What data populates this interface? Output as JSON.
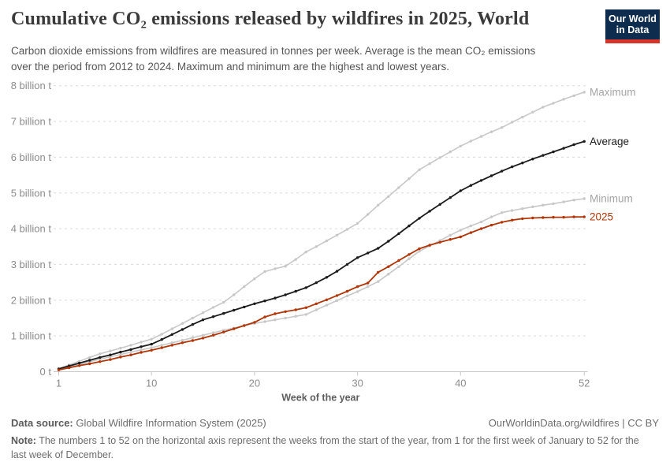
{
  "header": {
    "title": "Cumulative CO₂ emissions released by wildfires in 2025, World",
    "subtitle": "Carbon dioxide emissions from wildfires are measured in tonnes per week. Average is the mean CO₂ emissions over the period from 2012 to 2024. Maximum and minimum are the highest and lowest years.",
    "logo": {
      "line1": "Our World",
      "line2": "in Data"
    },
    "logo_colors": {
      "background": "#0e2d4e",
      "stripe": "#d7352a"
    }
  },
  "chart_data": {
    "type": "line",
    "title": "Cumulative CO₂ emissions released by wildfires in 2025, World",
    "xlabel": "Week of the year",
    "ylabel": "",
    "ylim": [
      0,
      8
    ],
    "xlim": [
      1,
      52
    ],
    "grid": "dashed-horizontal",
    "legend_position": "right-of-line-ends",
    "x_ticks": [
      1,
      10,
      20,
      30,
      40,
      52
    ],
    "y_ticks": [
      {
        "v": 0,
        "label": "0 t"
      },
      {
        "v": 1,
        "label": "1 billion t"
      },
      {
        "v": 2,
        "label": "2 billion t"
      },
      {
        "v": 3,
        "label": "3 billion t"
      },
      {
        "v": 4,
        "label": "4 billion t"
      },
      {
        "v": 5,
        "label": "5 billion t"
      },
      {
        "v": 6,
        "label": "6 billion t"
      },
      {
        "v": 7,
        "label": "7 billion t"
      },
      {
        "v": 8,
        "label": "8 billion t"
      }
    ],
    "x": [
      1,
      2,
      3,
      4,
      5,
      6,
      7,
      8,
      9,
      10,
      11,
      12,
      13,
      14,
      15,
      16,
      17,
      18,
      19,
      20,
      21,
      22,
      23,
      24,
      25,
      26,
      27,
      28,
      29,
      30,
      31,
      32,
      33,
      34,
      35,
      36,
      37,
      38,
      39,
      40,
      41,
      42,
      43,
      44,
      45,
      46,
      47,
      48,
      49,
      50,
      51,
      52
    ],
    "unit": "billion tonnes",
    "series": [
      {
        "name": "Maximum",
        "color": "#c8c8c8",
        "label_color": "#a5a5a5",
        "width": 1.6,
        "values": [
          0.08,
          0.19,
          0.29,
          0.4,
          0.5,
          0.58,
          0.66,
          0.74,
          0.83,
          0.91,
          1.05,
          1.2,
          1.35,
          1.5,
          1.65,
          1.8,
          1.94,
          2.15,
          2.38,
          2.6,
          2.8,
          2.88,
          2.95,
          3.14,
          3.35,
          3.5,
          3.66,
          3.82,
          3.98,
          4.15,
          4.4,
          4.66,
          4.9,
          5.15,
          5.4,
          5.65,
          5.82,
          5.99,
          6.15,
          6.31,
          6.45,
          6.58,
          6.71,
          6.83,
          6.98,
          7.12,
          7.26,
          7.4,
          7.51,
          7.62,
          7.72,
          7.82
        ]
      },
      {
        "name": "Minimum",
        "color": "#c8c8c8",
        "label_color": "#a5a5a5",
        "width": 1.6,
        "values": [
          0.06,
          0.13,
          0.2,
          0.28,
          0.35,
          0.42,
          0.48,
          0.55,
          0.61,
          0.67,
          0.74,
          0.81,
          0.88,
          0.95,
          1.02,
          1.09,
          1.16,
          1.22,
          1.29,
          1.35,
          1.4,
          1.45,
          1.5,
          1.55,
          1.6,
          1.73,
          1.86,
          1.99,
          2.12,
          2.24,
          2.38,
          2.52,
          2.73,
          2.94,
          3.16,
          3.37,
          3.52,
          3.67,
          3.82,
          3.96,
          4.08,
          4.19,
          4.33,
          4.45,
          4.51,
          4.56,
          4.61,
          4.66,
          4.7,
          4.75,
          4.8,
          4.84
        ]
      },
      {
        "name": "Average",
        "color": "#1c1c1c",
        "label_color": "#1c1c1c",
        "width": 1.8,
        "values": [
          0.08,
          0.16,
          0.24,
          0.32,
          0.4,
          0.47,
          0.55,
          0.62,
          0.7,
          0.77,
          0.9,
          1.04,
          1.18,
          1.32,
          1.45,
          1.54,
          1.63,
          1.72,
          1.81,
          1.9,
          1.98,
          2.06,
          2.15,
          2.25,
          2.35,
          2.49,
          2.64,
          2.81,
          3.0,
          3.19,
          3.32,
          3.45,
          3.65,
          3.86,
          4.08,
          4.29,
          4.49,
          4.68,
          4.87,
          5.06,
          5.21,
          5.35,
          5.48,
          5.61,
          5.73,
          5.84,
          5.95,
          6.05,
          6.15,
          6.25,
          6.35,
          6.44
        ]
      },
      {
        "name": "2025",
        "color": "#b13507",
        "label_color": "#b13507",
        "width": 1.8,
        "values": [
          0.05,
          0.11,
          0.17,
          0.22,
          0.28,
          0.34,
          0.41,
          0.47,
          0.54,
          0.6,
          0.67,
          0.74,
          0.81,
          0.87,
          0.94,
          1.02,
          1.11,
          1.2,
          1.29,
          1.38,
          1.53,
          1.62,
          1.68,
          1.73,
          1.79,
          1.9,
          2.01,
          2.13,
          2.25,
          2.38,
          2.48,
          2.78,
          2.94,
          3.11,
          3.28,
          3.44,
          3.54,
          3.62,
          3.7,
          3.77,
          3.89,
          4.0,
          4.1,
          4.18,
          4.24,
          4.28,
          4.3,
          4.31,
          4.32,
          4.32,
          4.33,
          4.33
        ]
      }
    ],
    "style": {
      "gridline_color": "#dadada",
      "axis_color": "#c9c9c9",
      "tick_label_color": "#8c8c8c"
    }
  },
  "footer": {
    "source_label": "Data source:",
    "source_value": "Global Wildfire Information System (2025)",
    "attribution": "OurWorldinData.org/wildfires | CC BY",
    "note_label": "Note:",
    "note_value": "The numbers 1 to 52 on the horizontal axis represent the weeks from the start of the year, from 1 for the first week of January to 52 for the last week of December."
  }
}
